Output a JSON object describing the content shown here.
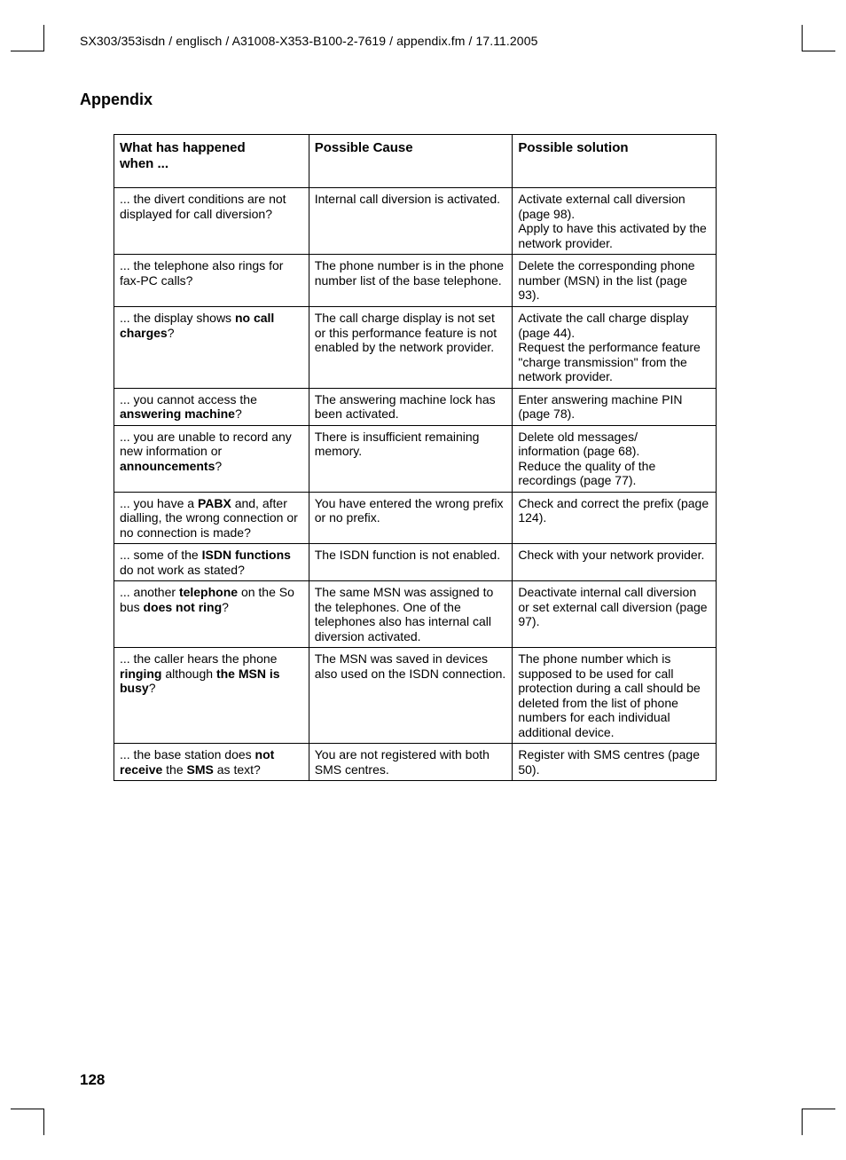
{
  "header": {
    "path": "SX303/353isdn / englisch / A31008-X353-B100-2-7619 / appendix.fm / 17.11.2005"
  },
  "section_title": "Appendix",
  "page_number": "128",
  "table": {
    "headers": {
      "col1_line1": "What has happened",
      "col1_line2": "when ...",
      "col2": "Possible Cause",
      "col3": "Possible solution"
    },
    "rows": [
      {
        "c1": "... the divert conditions are not displayed for call diversion?",
        "c2": "Internal call diversion is activated.",
        "c3": "Activate external call diversion (page 98).\nApply to have this activated by the network provider."
      },
      {
        "c1": "... the telephone also rings for fax-PC calls?",
        "c2": "The phone number is in the phone number list of the base telephone.",
        "c3": "Delete the corresponding phone number (MSN) in the list (page 93)."
      },
      {
        "c1_pre": "... the display shows ",
        "c1_b": "no call charges",
        "c1_post": "?",
        "c2": "The call charge display is not set or this performance feature is not enabled by the network provider.",
        "c3": "Activate the call charge display (page 44).\nRequest the performance feature \"charge transmission\" from the network provider."
      },
      {
        "c1_pre": "... you cannot access the ",
        "c1_b": "answering machine",
        "c1_post": "?",
        "c2": "The answering machine lock has been activated.",
        "c3": "Enter answering machine PIN (page 78)."
      },
      {
        "c1_pre": "... you are unable to record any new information or ",
        "c1_b": "announcements",
        "c1_post": "?",
        "c2": "There is insufficient remaining memory.",
        "c3": "Delete old messages/\ninformation (page 68).\nReduce the quality of the recordings (page 77)."
      },
      {
        "c1_pre": "... you have a ",
        "c1_b": "PABX",
        "c1_post": " and, after dialling, the wrong connection or no connection is made?",
        "c2": "You have entered the wrong prefix or no prefix.",
        "c3": "Check and correct the prefix (page 124)."
      },
      {
        "c1_pre": "... some of the ",
        "c1_b": "ISDN functions",
        "c1_post": " do not work as stated?",
        "c2": "The ISDN function is not enabled.",
        "c3": "Check with your network provider."
      },
      {
        "c1_pre": "... another ",
        "c1_b1": "telephone",
        "c1_mid": " on the So bus ",
        "c1_b2": "does not ring",
        "c1_post": "?",
        "c2": "The same MSN was assigned to the telephones. One of the telephones also has internal call diversion activated.",
        "c3": "Deactivate internal call diversion or set external call diversion (page 97)."
      },
      {
        "c1_pre": "... the caller hears the phone ",
        "c1_b1": "ringing",
        "c1_mid": " although ",
        "c1_b2": "the MSN is busy",
        "c1_post": "?",
        "c2": "The MSN was saved in devices also used on the ISDN connection.",
        "c3": "The phone number which is supposed to be used for call protection during a call should be deleted from the list of phone numbers for each individual additional device."
      },
      {
        "c1_pre": "... the base station does ",
        "c1_b1": "not receive",
        "c1_mid": " the ",
        "c1_b2": "SMS",
        "c1_post": " as text?",
        "c2": "You are not registered with both SMS centres.",
        "c3": "Register with SMS centres (page 50)."
      }
    ]
  }
}
